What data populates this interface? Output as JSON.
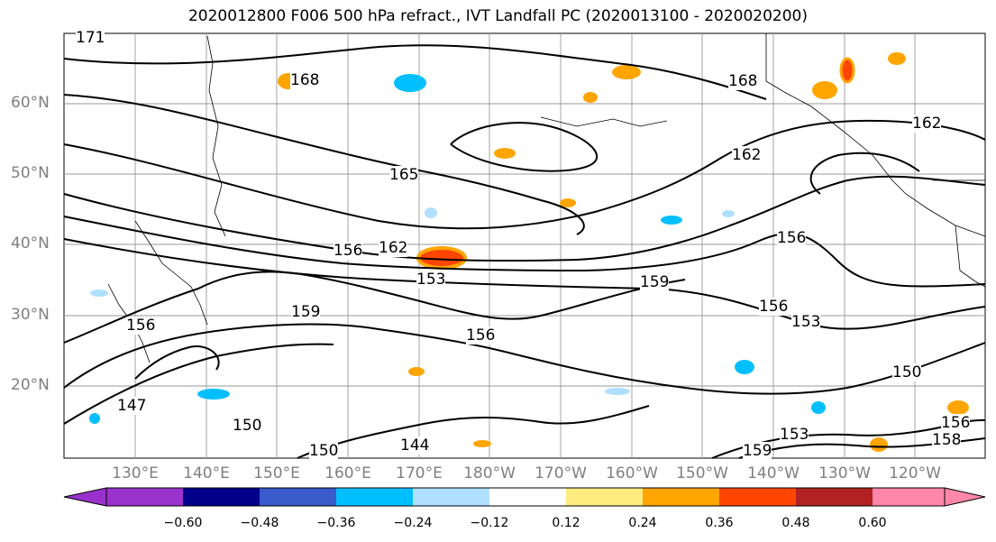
{
  "title": "2020012800 F006 500 hPa refract., IVT Landfall PC (2020013100 - 2020020200)",
  "map": {
    "lat_labels": [
      "60°N",
      "50°N",
      "40°N",
      "30°N",
      "20°N"
    ],
    "lon_labels": [
      "130°E",
      "140°E",
      "150°E",
      "160°E",
      "170°E",
      "180°W",
      "170°W",
      "160°W",
      "150°W",
      "140°W",
      "130°W",
      "120°W"
    ],
    "contour_labels": [
      "171",
      "168",
      "165",
      "162",
      "156",
      "153",
      "159",
      "156",
      "147",
      "150",
      "144",
      "150",
      "168",
      "162",
      "162",
      "156",
      "159",
      "156",
      "153",
      "150",
      "156",
      "159",
      "153",
      "156",
      "158"
    ],
    "grid": true,
    "coastlines": true
  },
  "colorbar": {
    "tick_labels": [
      "−0.60",
      "−0.48",
      "−0.36",
      "−0.24",
      "−0.12",
      "0.12",
      "0.24",
      "0.36",
      "0.48",
      "0.60"
    ],
    "colors": [
      "#9932cc",
      "#00008b",
      "#3a5bcc",
      "#00bfff",
      "#b0e0ff",
      "#ffffff",
      "#ffec80",
      "#ffa500",
      "#ff4500",
      "#b22222",
      "#ff88aa"
    ]
  }
}
